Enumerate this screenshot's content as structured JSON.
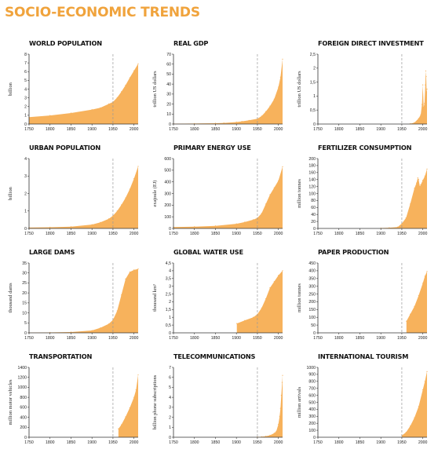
{
  "page": {
    "title": "SOCIO-ECONOMIC TRENDS"
  },
  "colors": {
    "title": "#f0a33c",
    "fill": "#f7b25c",
    "axis": "#333333",
    "marker": "#999999"
  },
  "chart_data": [
    {
      "type": "area",
      "title": "WORLD POPULATION",
      "ylabel": "billion",
      "ylim": [
        0,
        8
      ],
      "yticks": [
        0,
        1,
        2,
        3,
        4,
        5,
        6,
        7,
        8
      ],
      "xlim": [
        1750,
        2010
      ],
      "xticks": [
        1750,
        1800,
        1850,
        1900,
        1950,
        2000
      ],
      "marker_x": 1950,
      "x": [
        1750,
        1800,
        1850,
        1900,
        1920,
        1940,
        1950,
        1960,
        1970,
        1980,
        1990,
        2000,
        2010
      ],
      "values": [
        0.79,
        0.98,
        1.26,
        1.65,
        1.86,
        2.3,
        2.53,
        3.03,
        3.7,
        4.45,
        5.3,
        6.1,
        6.9
      ]
    },
    {
      "type": "area",
      "title": "REAL GDP",
      "ylabel": "trillion US dollars",
      "ylim": [
        0,
        70
      ],
      "yticks": [
        0,
        10,
        20,
        30,
        40,
        50,
        60,
        70
      ],
      "xlim": [
        1750,
        2010
      ],
      "xticks": [
        1750,
        1800,
        1850,
        1900,
        1950,
        2000
      ],
      "marker_x": 1950,
      "x": [
        1750,
        1800,
        1850,
        1870,
        1900,
        1913,
        1930,
        1950,
        1960,
        1970,
        1980,
        1990,
        2000,
        2005,
        2010
      ],
      "values": [
        0.3,
        0.5,
        0.8,
        1.1,
        2,
        2.7,
        3.7,
        5.3,
        8,
        12.5,
        18,
        25,
        37,
        47,
        65
      ]
    },
    {
      "type": "area",
      "title": "FOREIGN DIRECT INVESTMENT",
      "ylabel": "trillion US dollars",
      "ylim": [
        0,
        2.5
      ],
      "yticks": [
        0,
        0.5,
        1,
        1.5,
        2,
        2.5
      ],
      "ytick_labels": [
        "0",
        "0,5",
        "1",
        "1,5",
        "2",
        "2,5"
      ],
      "xlim": [
        1750,
        2010
      ],
      "xticks": [
        1750,
        1800,
        1850,
        1900,
        1950,
        2000
      ],
      "marker_x": 1950,
      "x": [
        1970,
        1980,
        1990,
        1995,
        1998,
        2000,
        2002,
        2004,
        2006,
        2007,
        2008,
        2009,
        2010
      ],
      "values": [
        0.01,
        0.05,
        0.2,
        0.33,
        0.7,
        1.4,
        0.6,
        0.74,
        1.4,
        1.9,
        1.7,
        1.15,
        1.25
      ]
    },
    {
      "type": "area",
      "title": "URBAN POPULATION",
      "ylabel": "billion",
      "ylim": [
        0,
        4
      ],
      "yticks": [
        0,
        1,
        2,
        3,
        4
      ],
      "xlim": [
        1750,
        2010
      ],
      "xticks": [
        1750,
        1800,
        1850,
        1900,
        1950,
        2000
      ],
      "marker_x": 1950,
      "x": [
        1750,
        1800,
        1850,
        1900,
        1920,
        1940,
        1950,
        1960,
        1970,
        1980,
        1990,
        2000,
        2010
      ],
      "values": [
        0.05,
        0.07,
        0.1,
        0.22,
        0.35,
        0.55,
        0.73,
        1.0,
        1.35,
        1.75,
        2.25,
        2.85,
        3.55
      ]
    },
    {
      "type": "area",
      "title": "PRIMARY ENERGY USE",
      "ylabel": "exajoule (EJ)",
      "ylim": [
        0,
        600
      ],
      "yticks": [
        0,
        100,
        200,
        300,
        400,
        500,
        600
      ],
      "xlim": [
        1750,
        2010
      ],
      "xticks": [
        1750,
        1800,
        1850,
        1900,
        1950,
        2000
      ],
      "marker_x": 1950,
      "x": [
        1750,
        1800,
        1850,
        1900,
        1920,
        1940,
        1950,
        1960,
        1970,
        1980,
        1990,
        2000,
        2010
      ],
      "values": [
        12,
        15,
        22,
        40,
        55,
        75,
        90,
        130,
        210,
        290,
        350,
        410,
        530
      ]
    },
    {
      "type": "area",
      "title": "FERTILIZER CONSUMPTION",
      "ylabel": "million tonnes",
      "ylim": [
        0,
        200
      ],
      "yticks": [
        0,
        20,
        40,
        60,
        80,
        100,
        120,
        140,
        160,
        180,
        200
      ],
      "xlim": [
        1750,
        2010
      ],
      "xticks": [
        1750,
        1800,
        1850,
        1900,
        1950,
        2000
      ],
      "marker_x": 1950,
      "x": [
        1900,
        1920,
        1940,
        1950,
        1960,
        1970,
        1980,
        1985,
        1988,
        1990,
        1993,
        1995,
        2000,
        2005,
        2010
      ],
      "values": [
        1,
        2,
        4,
        14,
        30,
        70,
        115,
        130,
        145,
        140,
        120,
        125,
        138,
        150,
        170
      ]
    },
    {
      "type": "area",
      "title": "LARGE DAMS",
      "ylabel": "thousand dams",
      "ylim": [
        0,
        35
      ],
      "yticks": [
        0,
        5,
        10,
        15,
        20,
        25,
        30,
        35
      ],
      "xlim": [
        1750,
        2010
      ],
      "xticks": [
        1750,
        1800,
        1850,
        1900,
        1950,
        2000
      ],
      "marker_x": 1950,
      "x": [
        1750,
        1800,
        1850,
        1900,
        1920,
        1940,
        1950,
        1960,
        1970,
        1980,
        1990,
        2000,
        2010
      ],
      "values": [
        0.1,
        0.2,
        0.4,
        1.2,
        2.5,
        4.5,
        6.5,
        11,
        19,
        27,
        30.5,
        31.5,
        32
      ]
    },
    {
      "type": "area",
      "title": "GLOBAL WATER USE",
      "ylabel": "thousand km³",
      "ylim": [
        0,
        4.5
      ],
      "yticks": [
        0,
        0.5,
        1,
        1.5,
        2,
        2.5,
        3,
        3.5,
        4,
        4.5
      ],
      "ytick_labels": [
        "0",
        "0,5",
        "1",
        "1,5",
        "2",
        "2,5",
        "3",
        "3,5",
        "4",
        "4,5"
      ],
      "xlim": [
        1750,
        2010
      ],
      "xticks": [
        1750,
        1800,
        1850,
        1900,
        1950,
        2000
      ],
      "marker_x": 1950,
      "x": [
        1901,
        1920,
        1940,
        1950,
        1960,
        1970,
        1980,
        1990,
        2000,
        2010
      ],
      "values": [
        0.6,
        0.8,
        1.0,
        1.2,
        1.6,
        2.2,
        2.9,
        3.3,
        3.7,
        4.0
      ]
    },
    {
      "type": "area",
      "title": "PAPER PRODUCTION",
      "ylabel": "million tonnes",
      "ylim": [
        0,
        450
      ],
      "yticks": [
        0,
        50,
        100,
        150,
        200,
        250,
        300,
        350,
        400,
        450
      ],
      "xlim": [
        1750,
        2010
      ],
      "xticks": [
        1750,
        1800,
        1850,
        1900,
        1950,
        2000
      ],
      "marker_x": 1950,
      "x": [
        1961,
        1970,
        1980,
        1990,
        2000,
        2005,
        2010
      ],
      "values": [
        75,
        120,
        170,
        240,
        320,
        365,
        395
      ]
    },
    {
      "type": "area",
      "title": "TRANSPORTATION",
      "ylabel": "million motor vehicles",
      "ylim": [
        0,
        1400
      ],
      "yticks": [
        0,
        200,
        400,
        600,
        800,
        1000,
        1200,
        1400
      ],
      "xlim": [
        1750,
        2010
      ],
      "xticks": [
        1750,
        1800,
        1850,
        1900,
        1950,
        2000
      ],
      "marker_x": 1950,
      "x": [
        1963,
        1970,
        1980,
        1990,
        2000,
        2005,
        2010
      ],
      "values": [
        170,
        250,
        410,
        590,
        800,
        950,
        1250
      ]
    },
    {
      "type": "area",
      "title": "TELECOMMUNICATIONS",
      "ylabel": "billion phone subscriptions",
      "ylim": [
        0,
        7
      ],
      "yticks": [
        0,
        1,
        2,
        3,
        4,
        5,
        6,
        7
      ],
      "xlim": [
        1750,
        2010
      ],
      "xticks": [
        1750,
        1800,
        1850,
        1900,
        1950,
        2000
      ],
      "marker_x": 1950,
      "x": [
        1950,
        1960,
        1970,
        1980,
        1990,
        1995,
        2000,
        2003,
        2005,
        2007,
        2009,
        2010
      ],
      "values": [
        0.02,
        0.05,
        0.1,
        0.2,
        0.4,
        0.6,
        1.3,
        2.1,
        2.9,
        4.2,
        5.5,
        6.2
      ]
    },
    {
      "type": "area",
      "title": "INTERNATIONAL TOURISM",
      "ylabel": "million arrivals",
      "ylim": [
        0,
        1000
      ],
      "yticks": [
        0,
        100,
        200,
        300,
        400,
        500,
        600,
        700,
        800,
        900,
        1000
      ],
      "xlim": [
        1750,
        2010
      ],
      "xticks": [
        1750,
        1800,
        1850,
        1900,
        1950,
        2000
      ],
      "marker_x": 1950,
      "x": [
        1950,
        1960,
        1970,
        1980,
        1990,
        2000,
        2005,
        2010
      ],
      "values": [
        25,
        70,
        160,
        280,
        440,
        680,
        800,
        940
      ]
    }
  ]
}
